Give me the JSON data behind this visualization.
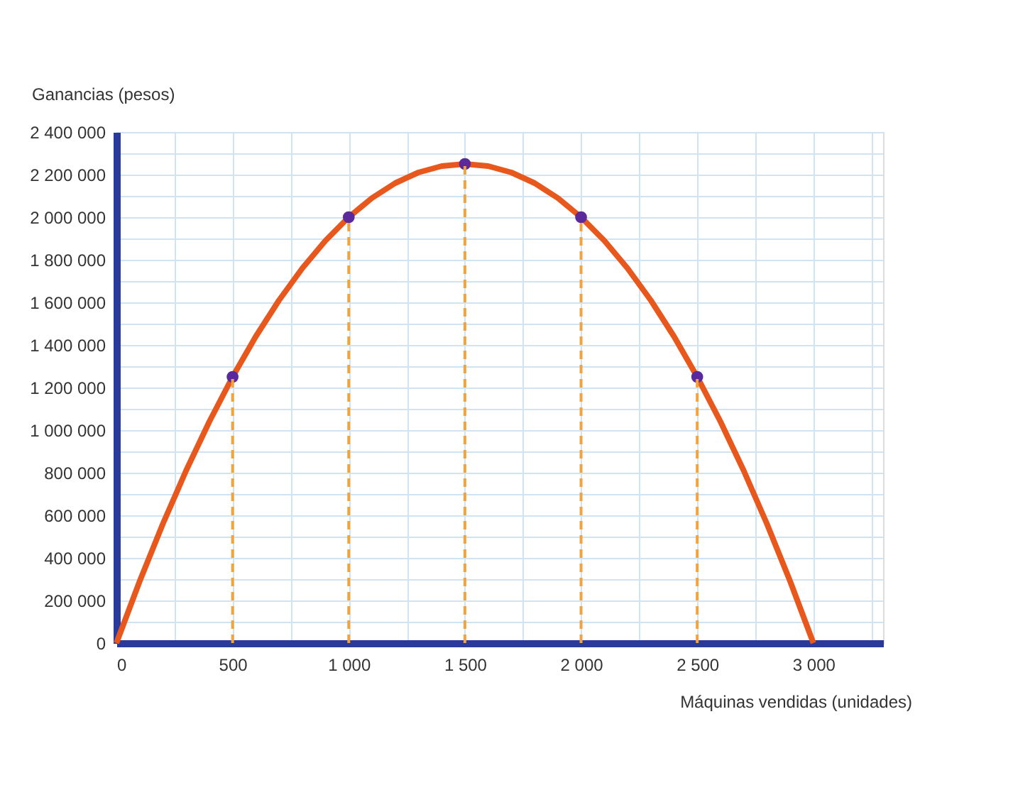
{
  "chart_data": {
    "type": "line",
    "xlabel": "Máquinas vendidas (unidades)",
    "ylabel": "Ganancias (pesos)",
    "xlim": [
      0,
      3300
    ],
    "ylim": [
      0,
      2400000
    ],
    "xticks": [
      {
        "value": 0,
        "label": "0"
      },
      {
        "value": 250,
        "label": null
      },
      {
        "value": 500,
        "label": "500"
      },
      {
        "value": 750,
        "label": null
      },
      {
        "value": 1000,
        "label": "1 000"
      },
      {
        "value": 1250,
        "label": null
      },
      {
        "value": 1500,
        "label": "1 500"
      },
      {
        "value": 1750,
        "label": null
      },
      {
        "value": 2000,
        "label": "2 000"
      },
      {
        "value": 2250,
        "label": null
      },
      {
        "value": 2500,
        "label": "2 500"
      },
      {
        "value": 2750,
        "label": null
      },
      {
        "value": 3000,
        "label": "3 000"
      },
      {
        "value": 3250,
        "label": null
      }
    ],
    "yticks": [
      {
        "value": 0,
        "label": "0"
      },
      {
        "value": 100000,
        "label": null
      },
      {
        "value": 200000,
        "label": "200 000"
      },
      {
        "value": 300000,
        "label": null
      },
      {
        "value": 400000,
        "label": "400 000"
      },
      {
        "value": 500000,
        "label": null
      },
      {
        "value": 600000,
        "label": "600 000"
      },
      {
        "value": 700000,
        "label": null
      },
      {
        "value": 800000,
        "label": "800 000"
      },
      {
        "value": 900000,
        "label": null
      },
      {
        "value": 1000000,
        "label": "1 000 000"
      },
      {
        "value": 1100000,
        "label": null
      },
      {
        "value": 1200000,
        "label": "1 200 000"
      },
      {
        "value": 1300000,
        "label": null
      },
      {
        "value": 1400000,
        "label": "1 400 000"
      },
      {
        "value": 1500000,
        "label": null
      },
      {
        "value": 1600000,
        "label": "1 600 000"
      },
      {
        "value": 1700000,
        "label": null
      },
      {
        "value": 1800000,
        "label": "1 800 000"
      },
      {
        "value": 1900000,
        "label": null
      },
      {
        "value": 2000000,
        "label": "2 000 000"
      },
      {
        "value": 2100000,
        "label": null
      },
      {
        "value": 2200000,
        "label": "2 200 000"
      },
      {
        "value": 2300000,
        "label": null
      },
      {
        "value": 2400000,
        "label": "2 400 000"
      }
    ],
    "grid": true,
    "legend": false,
    "series": [
      {
        "color": "#e8581c",
        "line_style": "solid",
        "x": [
          0,
          100,
          200,
          300,
          400,
          500,
          600,
          700,
          800,
          900,
          1000,
          1100,
          1200,
          1300,
          1400,
          1500,
          1600,
          1700,
          1800,
          1900,
          2000,
          2100,
          2200,
          2300,
          2400,
          2500,
          2600,
          2700,
          2800,
          2900,
          3000
        ],
        "values": [
          0,
          290000,
          560000,
          810000,
          1040000,
          1250000,
          1440000,
          1610000,
          1760000,
          1890000,
          2000000,
          2090000,
          2160000,
          2210000,
          2240000,
          2250000,
          2240000,
          2210000,
          2160000,
          2090000,
          2000000,
          1890000,
          1760000,
          1610000,
          1440000,
          1250000,
          1040000,
          810000,
          560000,
          290000,
          0
        ]
      },
      {
        "color": "#f2a33a",
        "line_style": "dashed",
        "x": [
          500,
          500
        ],
        "values": [
          0,
          1250000
        ]
      },
      {
        "color": "#f2a33b",
        "line_style": "dashed",
        "x": [
          1000,
          1000
        ],
        "values": [
          0,
          2000000
        ]
      },
      {
        "color": "#f2a33c",
        "line_style": "dashed",
        "x": [
          1500,
          1500
        ],
        "values": [
          0,
          2250000
        ]
      },
      {
        "color": "#f2a33d",
        "line_style": "dashed",
        "x": [
          2000,
          2000
        ],
        "values": [
          0,
          2000000
        ]
      },
      {
        "color": "#f2a33e",
        "line_style": "dashed",
        "x": [
          2500,
          2500
        ],
        "values": [
          0,
          1250000
        ]
      },
      {
        "type": "scatter",
        "color": "#5b2a9a",
        "marker": "circle",
        "x": [
          500,
          1000,
          1500,
          2000,
          2500
        ],
        "values": [
          1250000,
          2000000,
          2250000,
          2000000,
          1250000
        ]
      }
    ]
  }
}
